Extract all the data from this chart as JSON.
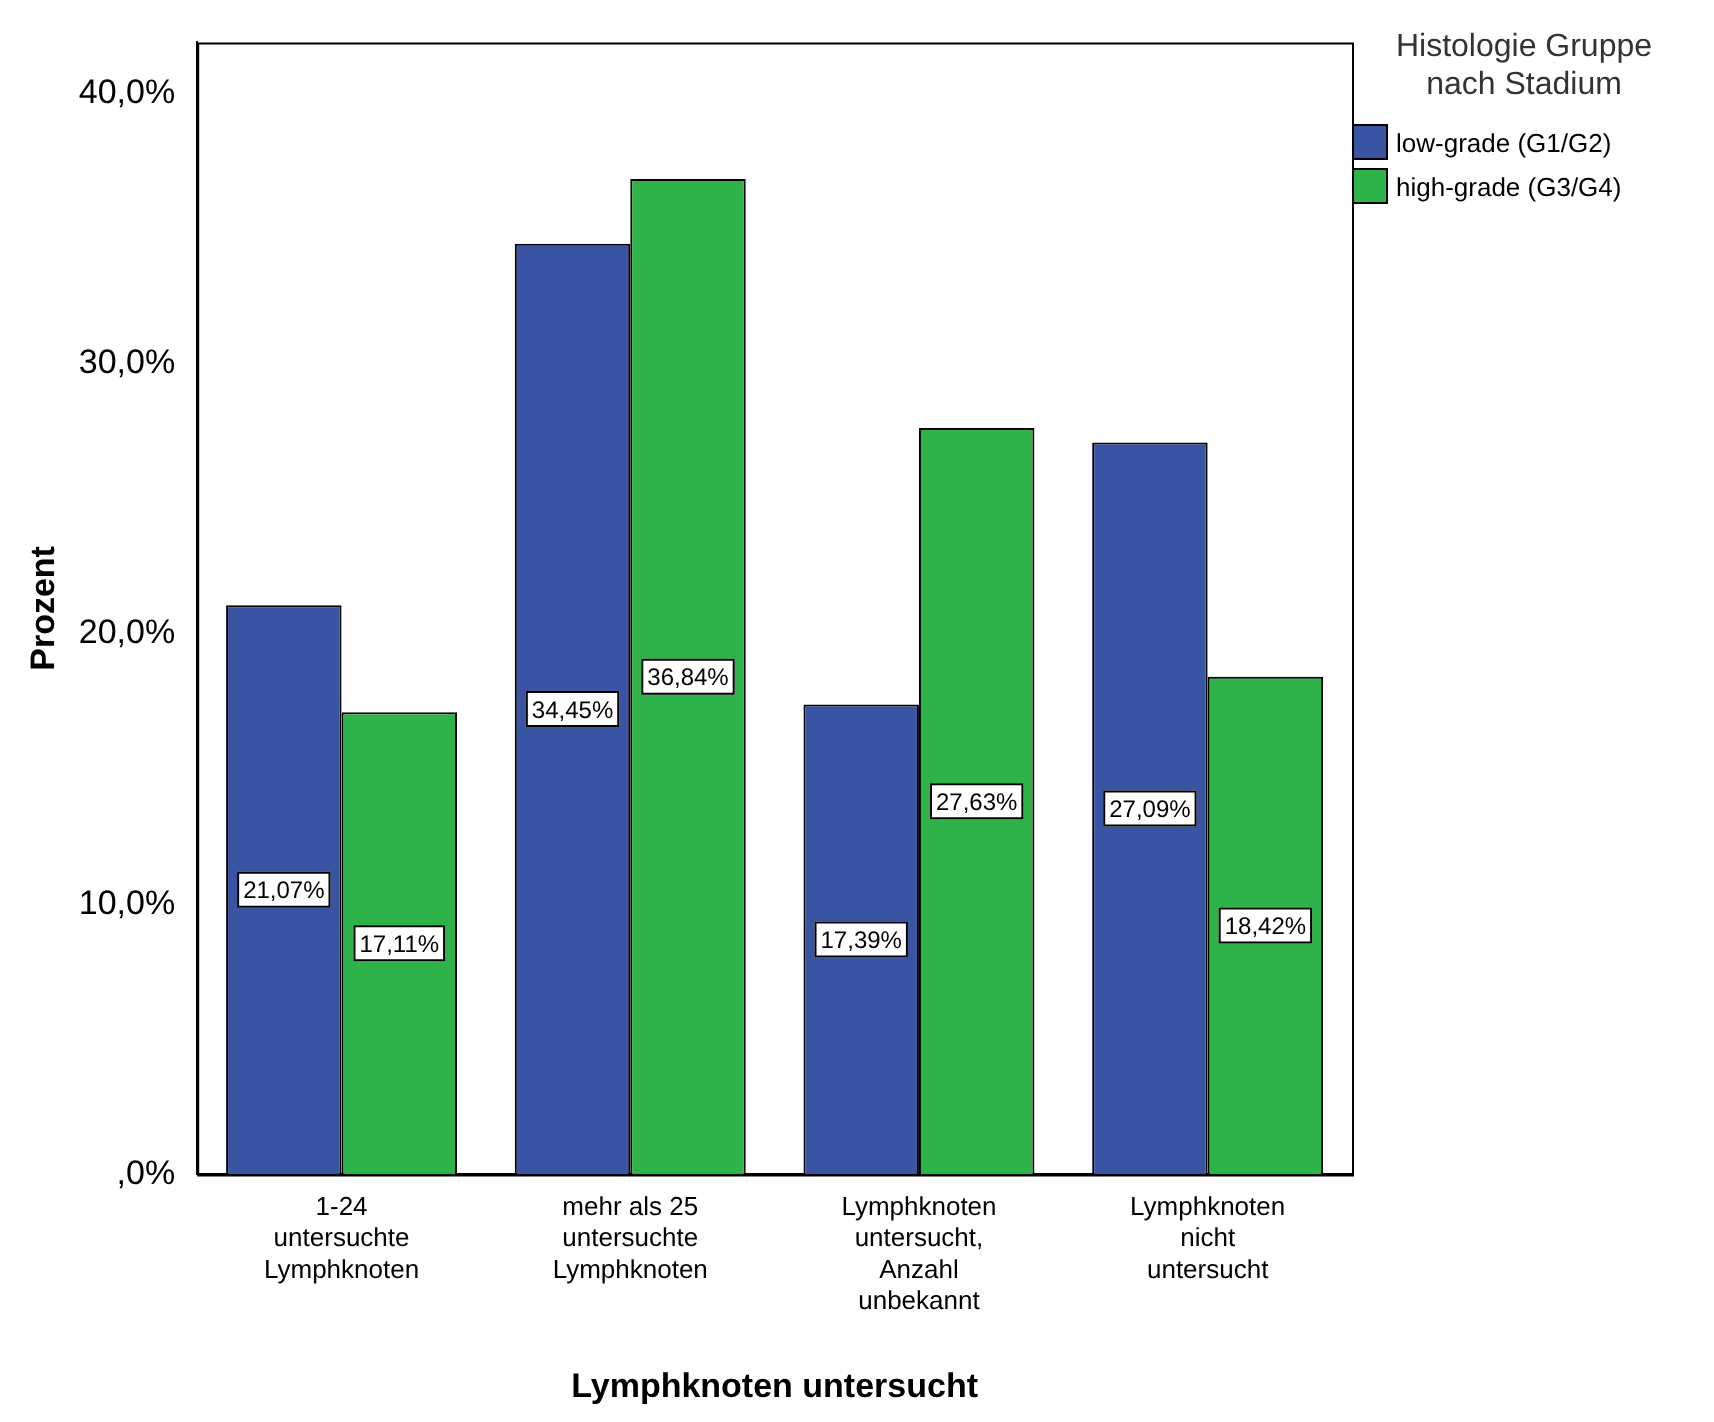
{
  "chart_data": {
    "type": "bar",
    "xlabel": "Lymphknoten untersucht",
    "ylabel": "Prozent",
    "legend_title": "Histologie Gruppe nach Stadium",
    "categories": [
      "1-24 untersuchte Lymphknoten",
      "mehr als 25 untersuchte Lymphknoten",
      "Lymphknoten untersucht, Anzahl unbekannt",
      "Lymphknoten nicht untersucht"
    ],
    "series": [
      {
        "name": "low-grade (G1/G2)",
        "color": "#3a54a4",
        "values": [
          21.07,
          34.45,
          17.39,
          27.09
        ],
        "value_labels": [
          "21,07%",
          "34,45%",
          "17,39%",
          "27,09%"
        ]
      },
      {
        "name": "high-grade (G3/G4)",
        "color": "#2db34a",
        "values": [
          17.11,
          36.84,
          27.63,
          18.42
        ],
        "value_labels": [
          "17,11%",
          "36,84%",
          "27,63%",
          "18,42%"
        ]
      }
    ],
    "ylim": [
      0,
      41.9
    ],
    "yticks": [
      {
        "value": 0,
        "label": ",0%"
      },
      {
        "value": 10,
        "label": "10,0%"
      },
      {
        "value": 20,
        "label": "20,0%"
      },
      {
        "value": 30,
        "label": "30,0%"
      },
      {
        "value": 40,
        "label": "40,0%"
      }
    ],
    "grid": false,
    "legend": "top right"
  }
}
